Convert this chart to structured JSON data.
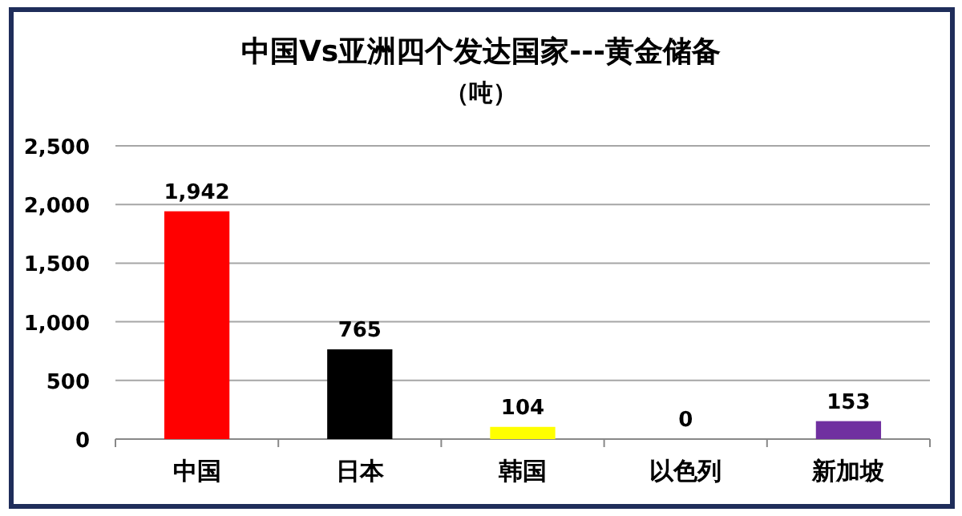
{
  "chart_data": {
    "type": "bar",
    "title": "中国Vs亚洲四个发达国家---黄金储备",
    "subtitle": "（吨）",
    "categories": [
      "中国",
      "日本",
      "韩国",
      "以色列",
      "新加坡"
    ],
    "values": [
      1942,
      765,
      104,
      0,
      153
    ],
    "colors": [
      "#ff0000",
      "#000000",
      "#ffff00",
      "#7f7f7f",
      "#7030a0"
    ],
    "value_labels": [
      "1,942",
      "765",
      "104",
      "0",
      "153"
    ],
    "ylim": [
      0,
      2500
    ],
    "yticks": [
      {
        "value": 0,
        "label": "0"
      },
      {
        "value": 500,
        "label": "500"
      },
      {
        "value": 1000,
        "label": "1,000"
      },
      {
        "value": 1500,
        "label": "1,500"
      },
      {
        "value": 2000,
        "label": "2,000"
      },
      {
        "value": 2500,
        "label": "2,500"
      }
    ],
    "grid": "y"
  }
}
